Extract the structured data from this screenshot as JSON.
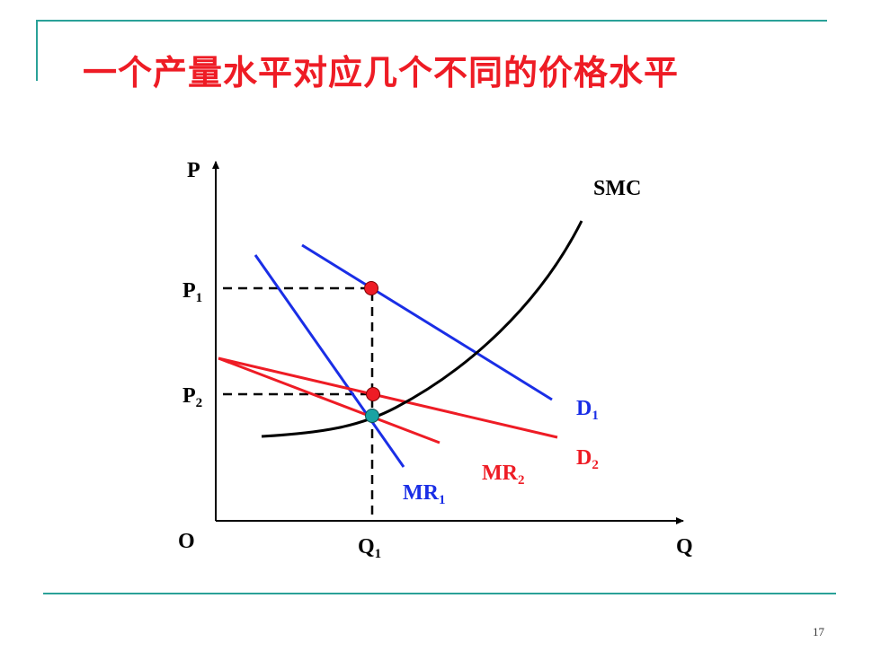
{
  "slide": {
    "title": "一个产量水平对应几个不同的价格水平",
    "page_number": "17"
  },
  "diagram": {
    "axis_labels": {
      "y": "P",
      "x": "Q",
      "origin": "O"
    },
    "ticks": {
      "p1": {
        "base": "P",
        "sub": "1"
      },
      "p2": {
        "base": "P",
        "sub": "2"
      },
      "q1": {
        "base": "Q",
        "sub": "1"
      }
    },
    "curves": {
      "smc": {
        "label": "SMC",
        "color": "#000000"
      },
      "d1": {
        "base": "D",
        "sub": "1",
        "color": "#1a2ee6"
      },
      "mr1": {
        "base": "MR",
        "sub": "1",
        "color": "#1a2ee6"
      },
      "d2": {
        "base": "D",
        "sub": "2",
        "color": "#ee1c25"
      },
      "mr2": {
        "base": "MR",
        "sub": "2",
        "color": "#ee1c25"
      }
    },
    "points": {
      "p1_d1": {
        "color": "#ee1c25"
      },
      "p2_d2": {
        "color": "#ee1c25"
      },
      "equilibrium": {
        "color": "#1aa3a3"
      }
    }
  }
}
